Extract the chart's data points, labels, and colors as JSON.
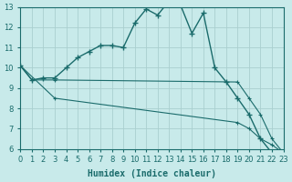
{
  "title": "",
  "xlabel": "Humidex (Indice chaleur)",
  "ylabel": "",
  "background_color": "#c8eaea",
  "grid_color": "#aacfcf",
  "line_color": "#1a6b6b",
  "x_min": 0,
  "x_max": 23,
  "y_min": 6,
  "y_max": 13,
  "series": [
    {
      "x": [
        0,
        1,
        2,
        3,
        4,
        5,
        6,
        7,
        8,
        9,
        10,
        11,
        12,
        13,
        14,
        15,
        16,
        17,
        18,
        19,
        20,
        21,
        22
      ],
      "y": [
        10.1,
        9.4,
        9.5,
        9.5,
        10.0,
        10.5,
        10.8,
        11.1,
        11.1,
        11.0,
        12.2,
        12.9,
        12.6,
        13.3,
        13.1,
        11.7,
        12.7,
        10.0,
        9.3,
        8.5,
        7.7,
        6.5,
        5.8
      ]
    },
    {
      "x": [
        0,
        1,
        3,
        19,
        20,
        21,
        22,
        23
      ],
      "y": [
        10.1,
        9.4,
        9.4,
        9.3,
        8.5,
        7.7,
        6.5,
        5.8
      ]
    },
    {
      "x": [
        0,
        3,
        19,
        20,
        21,
        22,
        23
      ],
      "y": [
        10.1,
        8.5,
        7.3,
        7.0,
        6.5,
        6.2,
        5.8
      ]
    }
  ]
}
